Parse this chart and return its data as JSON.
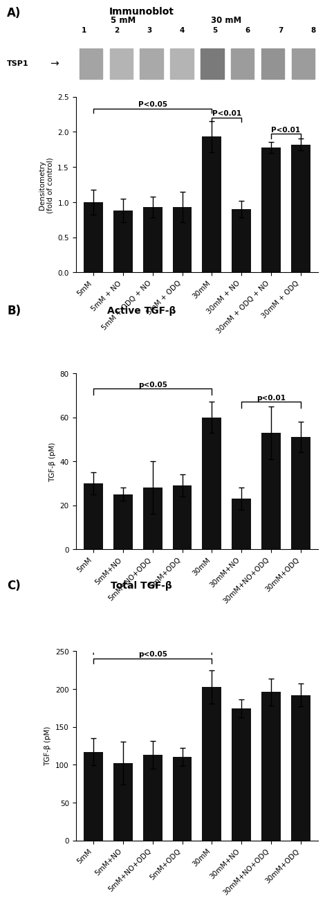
{
  "panel_A": {
    "title": "Immunoblot",
    "categories": [
      "5mM",
      "5mM + NO",
      "5mM + ODQ + NO",
      "5mM + ODQ",
      "30mM",
      "30mM + NO",
      "30mM + ODQ + NO",
      "30mM + ODQ"
    ],
    "values": [
      1.0,
      0.88,
      0.93,
      0.93,
      1.93,
      0.9,
      1.78,
      1.82
    ],
    "errors": [
      0.18,
      0.17,
      0.15,
      0.22,
      0.22,
      0.12,
      0.08,
      0.08
    ],
    "ylabel": "Densitometry\n(fold of control)",
    "ylim": [
      0.0,
      2.5
    ],
    "yticks": [
      0.0,
      0.5,
      1.0,
      1.5,
      2.0,
      2.5
    ]
  },
  "panel_B": {
    "title": "Active TGF-β",
    "categories": [
      "5mM",
      "5mM+NO",
      "5mM+NO+ODQ",
      "5mM+ODQ",
      "30mM",
      "30mM+NO",
      "30mM+NO+ODQ",
      "30mM+ODQ"
    ],
    "values": [
      30,
      25,
      28,
      29,
      60,
      23,
      53,
      51
    ],
    "errors": [
      5,
      3,
      12,
      5,
      7,
      5,
      12,
      7
    ],
    "ylabel": "TGF-β (pM)",
    "ylim": [
      0,
      80
    ],
    "yticks": [
      0,
      20,
      40,
      60,
      80
    ]
  },
  "panel_C": {
    "title": "Total TGF-β",
    "categories": [
      "5mM",
      "5mM+NO",
      "5mM+NO+ODQ",
      "5mM+ODQ",
      "30mM",
      "30mM+NO",
      "30mM+NO+ODQ",
      "30mM+ODQ"
    ],
    "values": [
      117,
      102,
      113,
      110,
      203,
      174,
      196,
      192
    ],
    "errors": [
      18,
      28,
      18,
      12,
      22,
      12,
      18,
      15
    ],
    "ylabel": "TGF-β (pM)",
    "ylim": [
      0,
      250
    ],
    "yticks": [
      0,
      50,
      100,
      150,
      200,
      250
    ]
  },
  "blot_band_intensities": [
    0.55,
    0.45,
    0.52,
    0.45,
    0.8,
    0.6,
    0.65,
    0.6
  ],
  "bar_color": "#111111",
  "background_color": "#ffffff"
}
